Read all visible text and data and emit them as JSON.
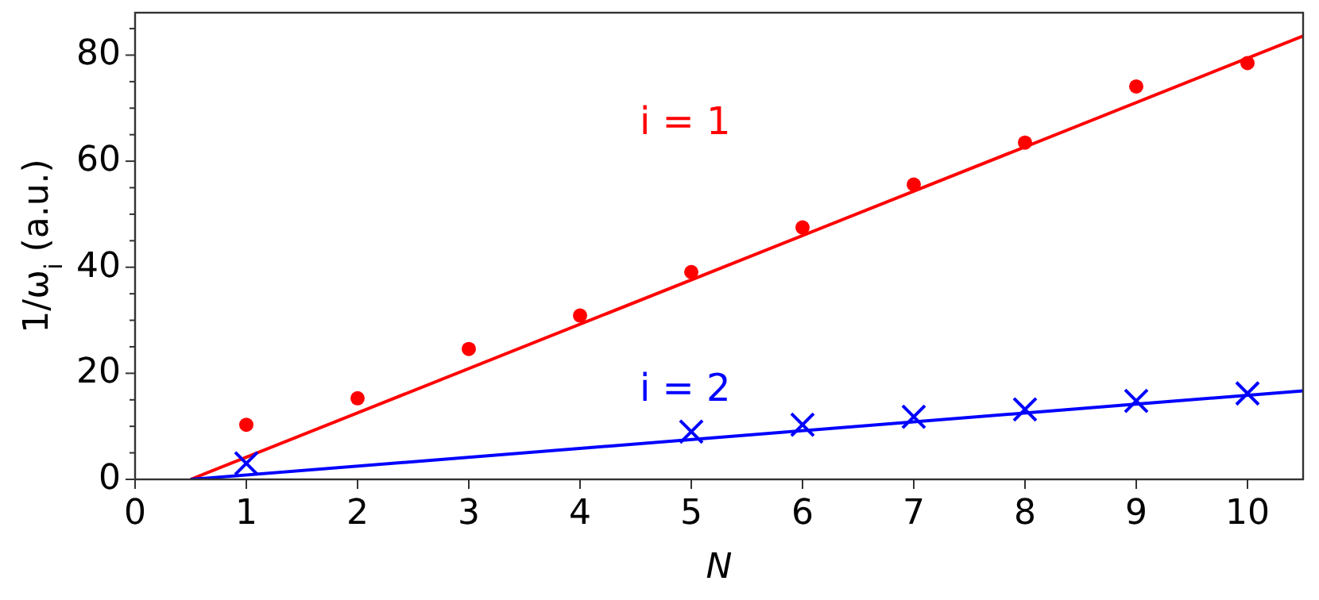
{
  "chart_data": {
    "type": "scatter",
    "xlabel": "N",
    "ylabel": "1/ω$_{i}$ (a.u.)",
    "xlim": [
      0,
      10.5
    ],
    "ylim": [
      0,
      88
    ],
    "xticks": [
      0,
      1,
      2,
      3,
      4,
      5,
      6,
      7,
      8,
      9,
      10
    ],
    "yticks": [
      0,
      {
        "value": 5,
        "label": null
      },
      {
        "value": 10,
        "label": null
      },
      {
        "value": 15,
        "label": null
      },
      20,
      {
        "value": 25,
        "label": null
      },
      {
        "value": 30,
        "label": null
      },
      {
        "value": 35,
        "label": null
      },
      40,
      {
        "value": 45,
        "label": null
      },
      {
        "value": 50,
        "label": null
      },
      {
        "value": 55,
        "label": null
      },
      60,
      {
        "value": 65,
        "label": null
      },
      {
        "value": 70,
        "label": null
      },
      {
        "value": 75,
        "label": null
      },
      80,
      {
        "value": 85,
        "label": null
      }
    ],
    "grid": false,
    "legend": false,
    "series": [
      {
        "name": "i = 1",
        "color": "#ff0000",
        "marker": "circle",
        "x": [
          1,
          2,
          3,
          4,
          5,
          6,
          7,
          8,
          9,
          10
        ],
        "values": [
          10.3,
          15.3,
          24.6,
          30.9,
          39.1,
          47.5,
          55.6,
          63.5,
          74.1,
          78.5
        ]
      },
      {
        "type": "line",
        "color": "#ff0000",
        "marker": "none",
        "line_style": "solid",
        "x": [
          0.5,
          10.5
        ],
        "values": [
          0,
          83.6
        ]
      },
      {
        "name": "i = 2",
        "color": "#0000ff",
        "marker": "cross",
        "x": [
          1,
          5,
          6,
          7,
          8,
          9,
          10
        ],
        "values": [
          3.0,
          9.0,
          10.3,
          11.8,
          13.2,
          14.8,
          16.2
        ]
      },
      {
        "type": "line",
        "color": "#0000ff",
        "marker": "none",
        "line_style": "solid",
        "x": [
          0.5,
          10.5
        ],
        "values": [
          0,
          16.7
        ]
      }
    ]
  }
}
